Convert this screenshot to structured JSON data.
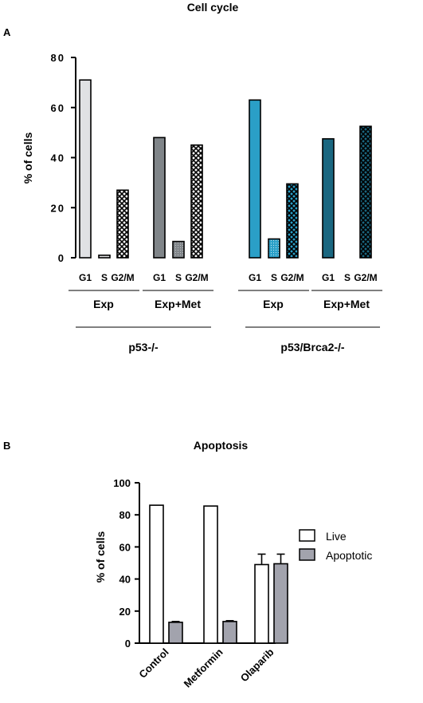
{
  "chart_data": [
    {
      "panel": "A",
      "type": "bar",
      "title": "Cell cycle",
      "ylabel": "% of cells",
      "ylim": [
        0,
        80
      ],
      "yticks": [
        0,
        20,
        40,
        60,
        80
      ],
      "phase_labels": [
        "G1",
        "S",
        "G2/M"
      ],
      "groups": [
        {
          "label": "p53-/-",
          "subgroups": [
            {
              "label": "Exp",
              "values": [
                71,
                1,
                27
              ],
              "color": "#e0e1e4"
            },
            {
              "label": "Exp+Met",
              "values": [
                48,
                6.5,
                45
              ],
              "color": "#808589"
            }
          ]
        },
        {
          "label": "p53/Brca2-/-",
          "subgroups": [
            {
              "label": "Exp",
              "values": [
                63,
                7.5,
                29.5
              ],
              "color": "#2a9fc7"
            },
            {
              "label": "Exp+Met",
              "values": [
                47.5,
                0,
                52.5
              ],
              "color": "#1a6780"
            }
          ]
        }
      ]
    },
    {
      "panel": "B",
      "type": "bar",
      "title": "Apoptosis",
      "ylabel": "% of cells",
      "ylim": [
        0,
        100
      ],
      "yticks": [
        0,
        20,
        40,
        60,
        80,
        100
      ],
      "categories": [
        "Control",
        "Metformin",
        "Olaparib"
      ],
      "series": [
        {
          "name": "Live",
          "values": [
            86,
            85.5,
            49
          ],
          "errors": [
            0,
            0,
            6.5
          ],
          "color": "#ffffff"
        },
        {
          "name": "Apoptotic",
          "values": [
            13,
            13.5,
            49.5
          ],
          "errors": [
            0.5,
            0.5,
            6
          ],
          "color": "#a2a3ad"
        }
      ],
      "legend": "right"
    }
  ]
}
